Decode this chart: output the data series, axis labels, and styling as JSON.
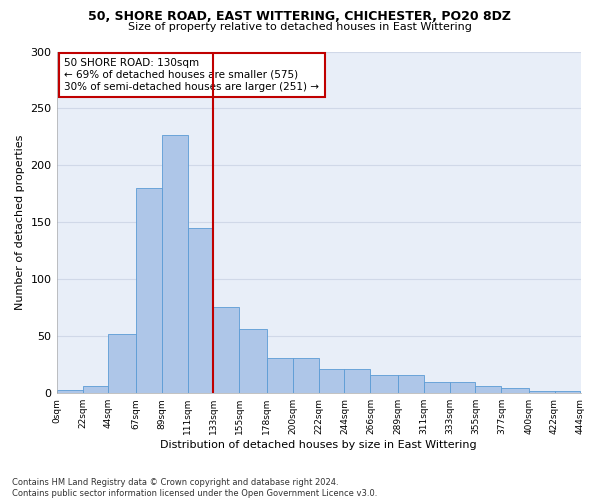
{
  "title1": "50, SHORE ROAD, EAST WITTERING, CHICHESTER, PO20 8DZ",
  "title2": "Size of property relative to detached houses in East Wittering",
  "xlabel": "Distribution of detached houses by size in East Wittering",
  "ylabel": "Number of detached properties",
  "footnote": "Contains HM Land Registry data © Crown copyright and database right 2024.\nContains public sector information licensed under the Open Government Licence v3.0.",
  "bar_edges": [
    0,
    22,
    44,
    67,
    89,
    111,
    133,
    155,
    178,
    200,
    222,
    244,
    266,
    289,
    311,
    333,
    355,
    377,
    400,
    422,
    444
  ],
  "bar_heights": [
    3,
    6,
    52,
    180,
    227,
    145,
    76,
    56,
    31,
    31,
    21,
    21,
    16,
    16,
    10,
    10,
    6,
    5,
    2,
    2,
    2
  ],
  "bar_color": "#aec6e8",
  "bar_edgecolor": "#5b9bd5",
  "vline_x": 133,
  "vline_color": "#c00000",
  "annotation_text": "50 SHORE ROAD: 130sqm\n← 69% of detached houses are smaller (575)\n30% of semi-detached houses are larger (251) →",
  "annotation_box_color": "#c00000",
  "annotation_text_color": "#000000",
  "tick_labels": [
    "0sqm",
    "22sqm",
    "44sqm",
    "67sqm",
    "89sqm",
    "111sqm",
    "133sqm",
    "155sqm",
    "178sqm",
    "200sqm",
    "222sqm",
    "244sqm",
    "266sqm",
    "289sqm",
    "311sqm",
    "333sqm",
    "355sqm",
    "377sqm",
    "400sqm",
    "422sqm",
    "444sqm"
  ],
  "ylim": [
    0,
    300
  ],
  "yticks": [
    0,
    50,
    100,
    150,
    200,
    250,
    300
  ],
  "background_color": "#e8eef8",
  "plot_background": "#ffffff",
  "grid_color": "#d0d8e8"
}
